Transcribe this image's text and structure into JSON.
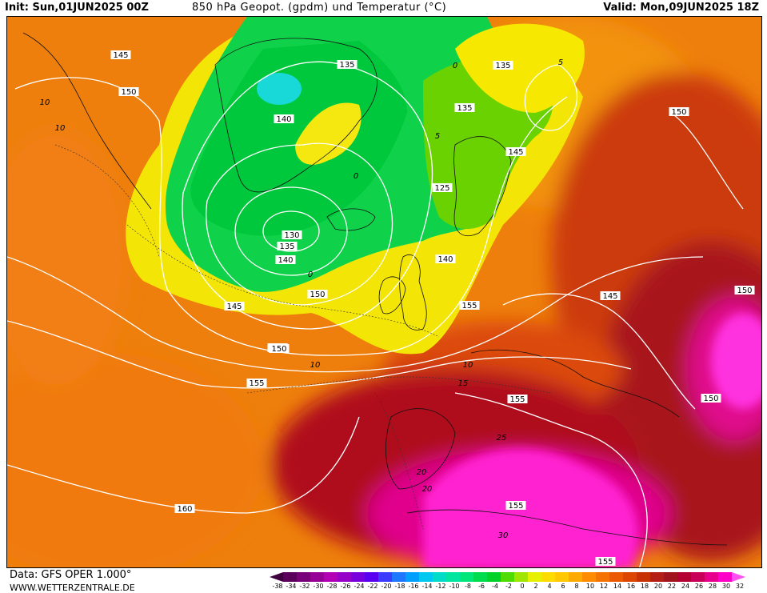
{
  "header": {
    "init": "Init: Sun,01JUN2025 00Z",
    "title": "850 hPa Geopot. (gpdm) und Temperatur (°C)",
    "valid": "Valid: Mon,09JUN2025 18Z"
  },
  "footer": {
    "data": "Data: GFS OPER 1.000°",
    "site": "WWW.WETTERZENTRALE.DE"
  },
  "geopotential_labels": [
    "145",
    "150",
    "135",
    "135",
    "135",
    "140",
    "145",
    "125",
    "130",
    "135",
    "140",
    "145",
    "150",
    "150",
    "140",
    "145",
    "150",
    "155",
    "150",
    "155",
    "150",
    "150",
    "155",
    "160",
    "155",
    "155"
  ],
  "temperature_labels": [
    "10",
    "10",
    "0",
    "5",
    "0",
    "5",
    "0",
    "10",
    "15",
    "10",
    "20",
    "25",
    "20",
    "30"
  ],
  "colorbar": {
    "ticks": [
      "-38",
      "-34",
      "-32",
      "-30",
      "-28",
      "-26",
      "-24",
      "-22",
      "-20",
      "-18",
      "-16",
      "-14",
      "-12",
      "-10",
      "-8",
      "-6",
      "-4",
      "-2",
      "0",
      "2",
      "4",
      "6",
      "8",
      "10",
      "12",
      "14",
      "16",
      "18",
      "20",
      "22",
      "24",
      "26",
      "28",
      "30",
      "32"
    ],
    "colors": [
      "#3d003d",
      "#5a005a",
      "#780078",
      "#960096",
      "#b400b4",
      "#9600c8",
      "#7800dc",
      "#5a00f0",
      "#3c3cff",
      "#1e78ff",
      "#00a0ff",
      "#00c8f0",
      "#00dcc8",
      "#00e6a0",
      "#00e678",
      "#00dc50",
      "#00d228",
      "#50dc00",
      "#a0e600",
      "#e6f000",
      "#ffdc00",
      "#ffc800",
      "#ffaa00",
      "#ff8c00",
      "#f57300",
      "#eb5a00",
      "#dc4600",
      "#c83200",
      "#b41e14",
      "#a0141e",
      "#b40032",
      "#c8005a",
      "#e6008c",
      "#ff00c8",
      "#ff50f0"
    ]
  }
}
